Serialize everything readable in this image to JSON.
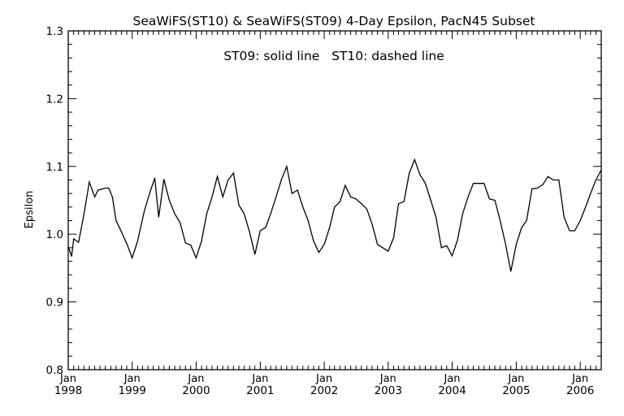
{
  "chart_data": {
    "type": "line",
    "title": "SeaWiFS(ST10) & SeaWiFS(ST09) 4-Day Epsilon, PacN45 Subset",
    "annotation": "ST09: solid line   ST10: dashed line",
    "xlabel": "",
    "ylabel": "Epsilon",
    "xlim": [
      "1998-01-01",
      "2006-05-01"
    ],
    "ylim": [
      0.8,
      1.3
    ],
    "grid": false,
    "yticks": [
      {
        "value": 0.8,
        "label": "0.8"
      },
      {
        "value": 0.9,
        "label": "0.9"
      },
      {
        "value": 1.0,
        "label": "1.0"
      },
      {
        "value": 1.1,
        "label": "1.1"
      },
      {
        "value": 1.2,
        "label": "1.2"
      },
      {
        "value": 1.3,
        "label": "1.3"
      }
    ],
    "xticks": [
      {
        "date": "1998-01-01",
        "month": "Jan",
        "year": "1998"
      },
      {
        "date": "1999-01-01",
        "month": "Jan",
        "year": "1999"
      },
      {
        "date": "2000-01-01",
        "month": "Jan",
        "year": "2000"
      },
      {
        "date": "2001-01-01",
        "month": "Jan",
        "year": "2001"
      },
      {
        "date": "2002-01-01",
        "month": "Jan",
        "year": "2002"
      },
      {
        "date": "2003-01-01",
        "month": "Jan",
        "year": "2003"
      },
      {
        "date": "2004-01-01",
        "month": "Jan",
        "year": "2004"
      },
      {
        "date": "2005-01-01",
        "month": "Jan",
        "year": "2005"
      },
      {
        "date": "2006-01-01",
        "month": "Jan",
        "year": "2006"
      }
    ],
    "series": [
      {
        "style": "solid",
        "color": "#000000",
        "x": [
          "1998-01-01",
          "1998-01-20",
          "1998-02-01",
          "1998-03-01",
          "1998-04-01",
          "1998-05-01",
          "1998-06-01",
          "1998-06-20",
          "1998-08-01",
          "1998-08-20",
          "1998-09-10",
          "1998-10-01",
          "1998-11-01",
          "1998-12-01",
          "1999-01-01",
          "1999-02-01",
          "1999-03-10",
          "1999-04-10",
          "1999-05-10",
          "1999-06-01",
          "1999-07-01",
          "1999-08-01",
          "1999-09-01",
          "1999-10-01",
          "1999-11-01",
          "1999-12-01",
          "2000-01-01",
          "2000-02-01",
          "2000-03-01",
          "2000-04-01",
          "2000-05-01",
          "2000-06-01",
          "2000-07-01",
          "2000-08-01",
          "2000-09-01",
          "2000-10-01",
          "2000-11-01",
          "2000-12-01",
          "2001-01-01",
          "2001-02-01",
          "2001-03-01",
          "2001-04-01",
          "2001-05-01",
          "2001-06-01",
          "2001-07-01",
          "2001-08-01",
          "2001-09-01",
          "2001-10-01",
          "2001-11-01",
          "2001-12-01",
          "2002-01-01",
          "2002-02-01",
          "2002-03-01",
          "2002-04-01",
          "2002-05-01",
          "2002-06-01",
          "2002-07-01",
          "2002-08-01",
          "2002-09-01",
          "2002-10-01",
          "2002-11-01",
          "2002-12-01",
          "2003-01-01",
          "2003-02-01",
          "2003-03-01",
          "2003-04-01",
          "2003-05-01",
          "2003-06-01",
          "2003-07-01",
          "2003-08-01",
          "2003-09-01",
          "2003-10-01",
          "2003-11-01",
          "2003-12-01",
          "2004-01-01",
          "2004-02-01",
          "2004-03-01",
          "2004-04-01",
          "2004-05-01",
          "2004-06-01",
          "2004-07-01",
          "2004-08-01",
          "2004-09-01",
          "2004-10-01",
          "2004-11-01",
          "2004-12-01",
          "2005-01-01",
          "2005-02-01",
          "2005-03-01",
          "2005-04-01",
          "2005-05-01",
          "2005-06-01",
          "2005-07-01",
          "2005-08-01",
          "2005-09-01",
          "2005-10-01",
          "2005-11-01",
          "2005-12-01",
          "2006-01-01",
          "2006-02-01",
          "2006-03-01",
          "2006-04-01",
          "2006-05-01"
        ],
        "y": [
          0.982,
          0.967,
          0.993,
          0.988,
          1.03,
          1.077,
          1.055,
          1.065,
          1.068,
          1.068,
          1.055,
          1.02,
          1.003,
          0.986,
          0.965,
          0.99,
          1.033,
          1.06,
          1.083,
          1.025,
          1.081,
          1.05,
          1.03,
          1.017,
          0.987,
          0.984,
          0.965,
          0.99,
          1.03,
          1.055,
          1.085,
          1.055,
          1.08,
          1.09,
          1.043,
          1.03,
          1.003,
          0.97,
          1.005,
          1.01,
          1.03,
          1.055,
          1.08,
          1.1,
          1.06,
          1.065,
          1.04,
          1.02,
          0.99,
          0.973,
          0.985,
          1.01,
          1.04,
          1.048,
          1.072,
          1.055,
          1.052,
          1.045,
          1.037,
          1.015,
          0.985,
          0.98,
          0.975,
          0.995,
          1.045,
          1.048,
          1.09,
          1.11,
          1.088,
          1.075,
          1.05,
          1.025,
          0.98,
          0.983,
          0.968,
          0.992,
          1.03,
          1.055,
          1.075,
          1.075,
          1.075,
          1.052,
          1.05,
          1.02,
          0.985,
          0.945,
          0.985,
          1.01,
          1.02,
          1.067,
          1.068,
          1.073,
          1.085,
          1.08,
          1.08,
          1.025,
          1.005,
          1.005,
          1.02,
          1.04,
          1.06,
          1.08,
          1.095
        ]
      }
    ]
  }
}
